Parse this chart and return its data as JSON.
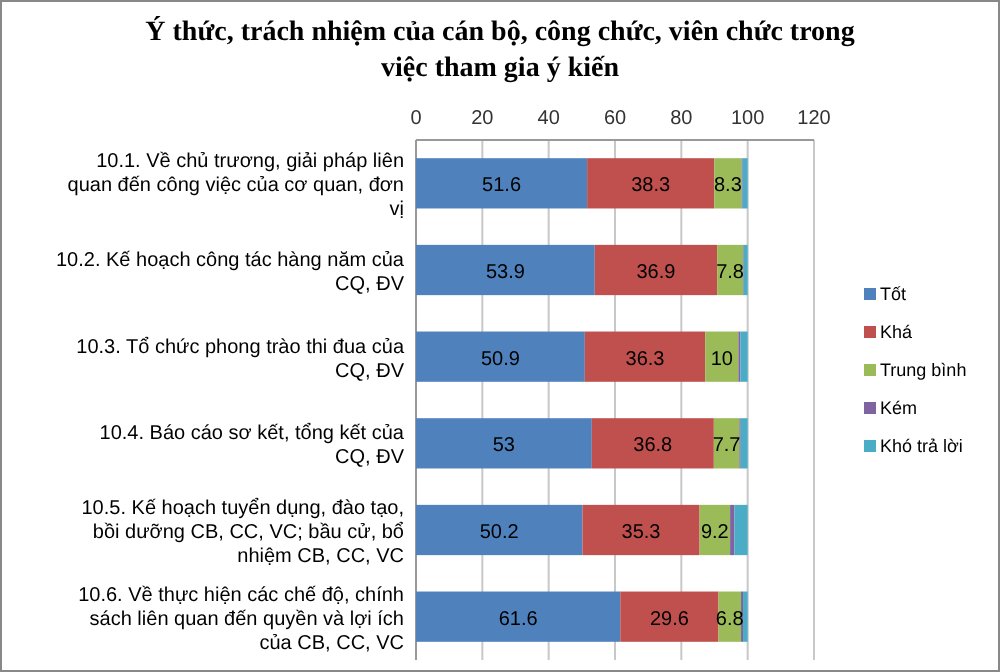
{
  "chart_data": {
    "type": "bar",
    "orientation": "horizontal",
    "stacked": true,
    "title": "Ý thức, trách nhiệm của cán bộ, công chức, viên chức trong việc tham gia ý kiến",
    "categories": [
      "10.1. Về chủ trương, giải pháp liên quan đến công việc của cơ quan, đơn vị",
      "10.2. Kế hoạch công tác hàng năm của CQ, ĐV",
      "10.3. Tổ chức phong trào thi đua của CQ, ĐV",
      "10.4. Báo cáo sơ kết, tổng kết của CQ, ĐV",
      "10.5. Kế hoạch tuyển dụng,  đào tạo, bồi dưỡng CB, CC, VC; bầu cử, bổ nhiệm CB, CC, VC",
      "10.6. Về thực hiện các chế độ, chính sách liên quan đến quyền và lợi ích của CB, CC, VC"
    ],
    "series": [
      {
        "name": "Tốt",
        "color": "#4f81bd",
        "values": [
          51.6,
          53.9,
          50.9,
          53,
          50.2,
          61.6
        ],
        "value_labels": [
          "51.6",
          "53.9",
          "50.9",
          "53",
          "50.2",
          "61.6"
        ]
      },
      {
        "name": "Khá",
        "color": "#c0504d",
        "values": [
          38.3,
          36.9,
          36.3,
          36.8,
          35.3,
          29.6
        ],
        "value_labels": [
          "38.3",
          "36.9",
          "36.3",
          "36.8",
          "35.3",
          "29.6"
        ]
      },
      {
        "name": "Trung bình",
        "color": "#9bbb59",
        "values": [
          8.3,
          7.8,
          10,
          7.7,
          9.2,
          6.8
        ],
        "value_labels": [
          "8.3",
          "7.8",
          "10",
          "7.7",
          "9.2",
          "6.8"
        ]
      },
      {
        "name": "Kém",
        "color": "#8064a2",
        "values": [
          0.3,
          0.2,
          0.6,
          0.4,
          1.3,
          0.6
        ]
      },
      {
        "name": "Khó trả lời",
        "color": "#4bacc6",
        "values": [
          1.5,
          1.2,
          2.2,
          2.1,
          4,
          1.4
        ]
      }
    ],
    "xlim": [
      0,
      120
    ],
    "xticks": [
      0,
      20,
      40,
      60,
      80,
      100,
      120
    ],
    "grid": "x",
    "legend": "right"
  }
}
